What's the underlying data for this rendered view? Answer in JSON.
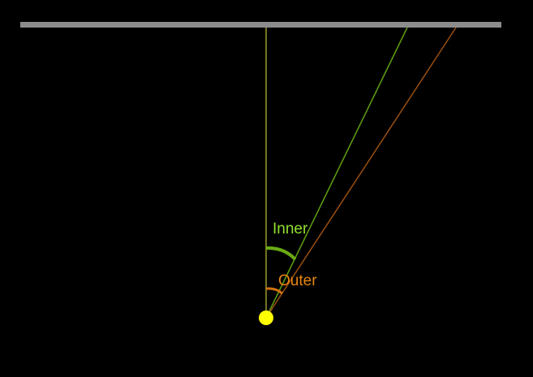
{
  "diagram": {
    "labels": {
      "inner": "Inner",
      "outer": "Outer"
    },
    "colors": {
      "background": "#000000",
      "surface": "#8c8c8c",
      "normal_line": "#9a9a2a",
      "inner_line": "#5fa010",
      "inner_arc": "#6aaa14",
      "inner_label": "#8fe030",
      "outer_line": "#9a4f10",
      "outer_arc": "#d07010",
      "outer_label": "#e8850f",
      "light_source": "#ffff00"
    }
  }
}
